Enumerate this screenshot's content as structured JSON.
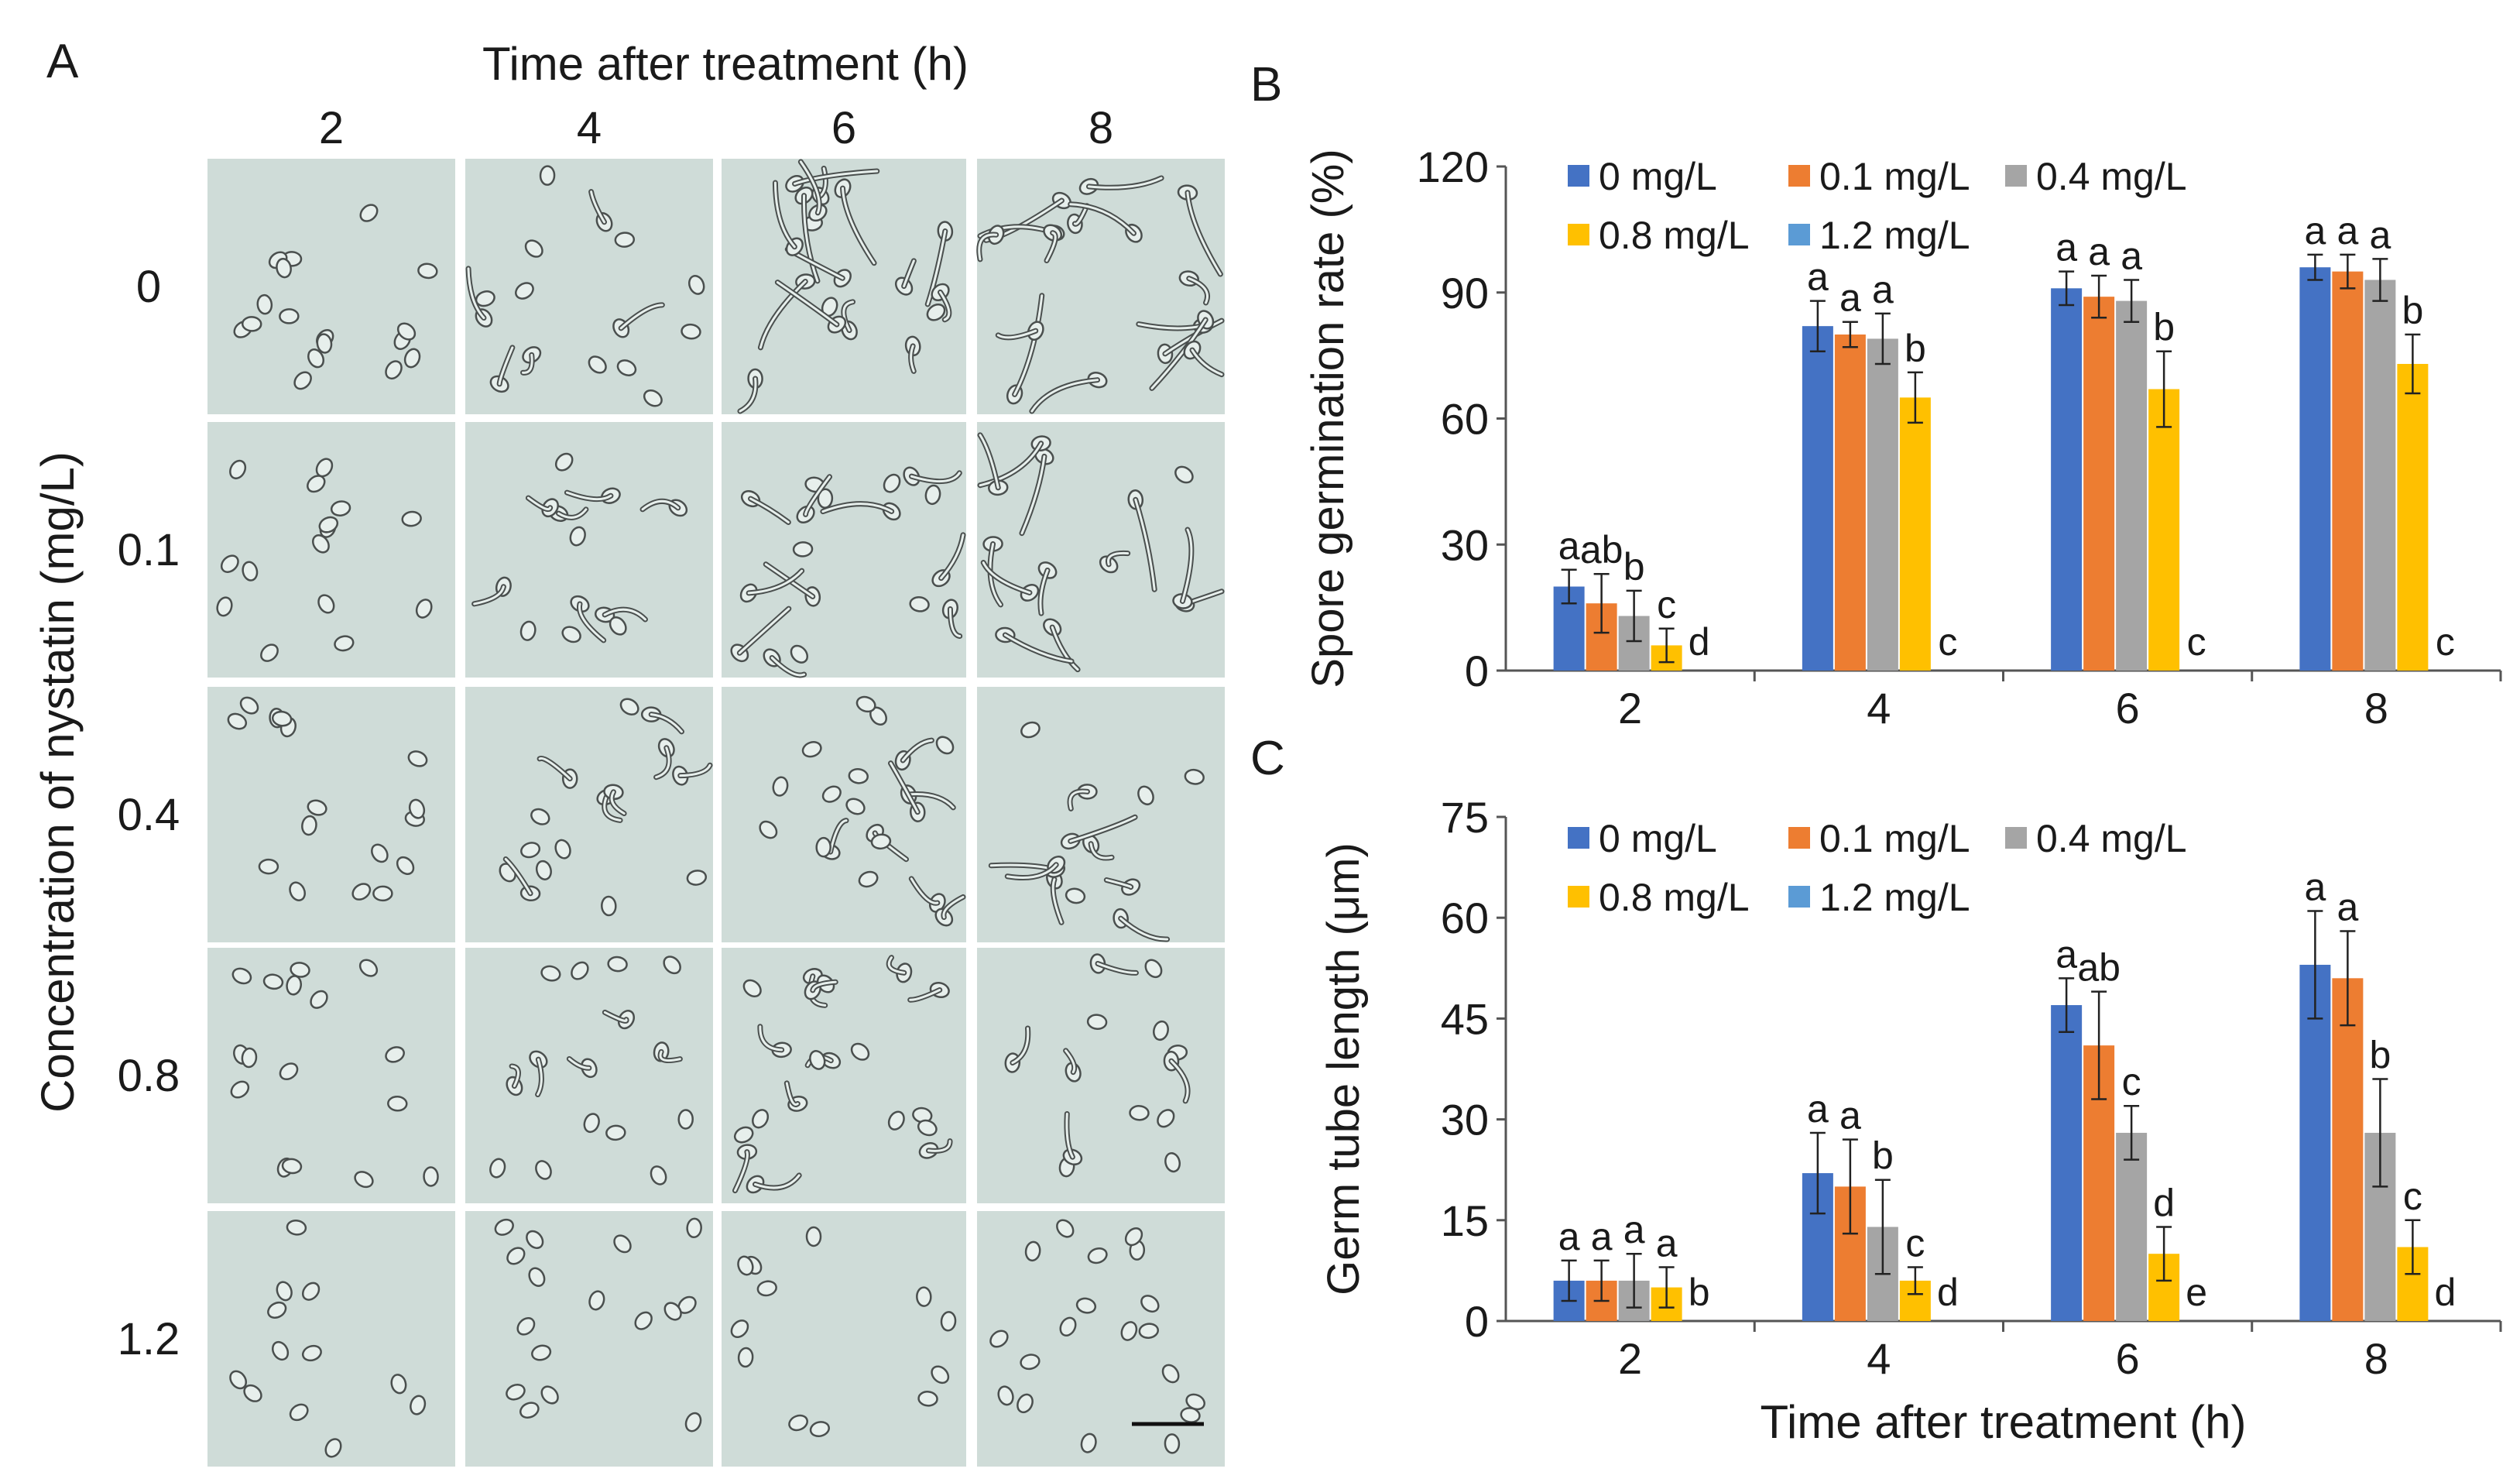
{
  "panel_a": {
    "label": "A",
    "top_title": "Time after treatment (h)",
    "column_labels": [
      "2",
      "4",
      "6",
      "8"
    ],
    "row_axis_label": "Concentration of nystatin (mg/L)",
    "row_labels": [
      "0",
      "0.1",
      "0.4",
      "0.8",
      "1.2"
    ]
  },
  "panel_labels": {
    "b": "B",
    "c": "C"
  },
  "colors": {
    "series": [
      "#4472C4",
      "#ED7D31",
      "#A5A5A5",
      "#FFC000",
      "#5B9BD5"
    ],
    "micrograph_bg": "#cfdcd8",
    "cell_outline": "#4a4f4e"
  },
  "chart_data": [
    {
      "type": "bar",
      "panel": "B",
      "ylabel": "Spore germination rate (%)",
      "xlabel": "",
      "categories": [
        "2",
        "4",
        "6",
        "8"
      ],
      "ylim": [
        0,
        120
      ],
      "yticks": [
        "0",
        "30",
        "60",
        "90",
        "120"
      ],
      "legend_placement": "top-left",
      "series": [
        {
          "name": "0 mg/L",
          "values": [
            20,
            82,
            91,
            96
          ],
          "errors": [
            4,
            6,
            4,
            3
          ]
        },
        {
          "name": "0.1 mg/L",
          "values": [
            16,
            80,
            89,
            95
          ],
          "errors": [
            7,
            3,
            5,
            4
          ]
        },
        {
          "name": "0.4 mg/L",
          "values": [
            13,
            79,
            88,
            93
          ],
          "errors": [
            6,
            6,
            5,
            5
          ]
        },
        {
          "name": "0.8 mg/L",
          "values": [
            6,
            65,
            67,
            73
          ],
          "errors": [
            4,
            6,
            9,
            7
          ]
        },
        {
          "name": "1.2 mg/L",
          "values": [
            0,
            0,
            0,
            0
          ],
          "errors": [
            0,
            0,
            0,
            0
          ]
        }
      ],
      "annotations": [
        [
          "a",
          "ab",
          "b",
          "c",
          "d"
        ],
        [
          "a",
          "a",
          "a",
          "b",
          "c"
        ],
        [
          "a",
          "a",
          "a",
          "b",
          "c"
        ],
        [
          "a",
          "a",
          "a",
          "b",
          "c"
        ]
      ]
    },
    {
      "type": "bar",
      "panel": "C",
      "ylabel": "Germ tube length (μm)",
      "xlabel": "Time after treatment (h)",
      "categories": [
        "2",
        "4",
        "6",
        "8"
      ],
      "ylim": [
        0,
        75
      ],
      "yticks": [
        "0",
        "15",
        "30",
        "45",
        "60",
        "75"
      ],
      "legend_placement": "top-left",
      "series": [
        {
          "name": "0 mg/L",
          "values": [
            6,
            22,
            47,
            53
          ],
          "errors": [
            3,
            6,
            4,
            8
          ]
        },
        {
          "name": "0.1 mg/L",
          "values": [
            6,
            20,
            41,
            51
          ],
          "errors": [
            3,
            7,
            8,
            7
          ]
        },
        {
          "name": "0.4 mg/L",
          "values": [
            6,
            14,
            28,
            28
          ],
          "errors": [
            4,
            7,
            4,
            8
          ]
        },
        {
          "name": "0.8 mg/L",
          "values": [
            5,
            6,
            10,
            11
          ],
          "errors": [
            3,
            2,
            4,
            4
          ]
        },
        {
          "name": "1.2 mg/L",
          "values": [
            0,
            0,
            0,
            0
          ],
          "errors": [
            0,
            0,
            0,
            0
          ]
        }
      ],
      "annotations": [
        [
          "a",
          "a",
          "a",
          "a",
          "b"
        ],
        [
          "a",
          "a",
          "b",
          "c",
          "d"
        ],
        [
          "a",
          "ab",
          "c",
          "d",
          "e"
        ],
        [
          "a",
          "a",
          "b",
          "c",
          "d"
        ]
      ]
    }
  ]
}
